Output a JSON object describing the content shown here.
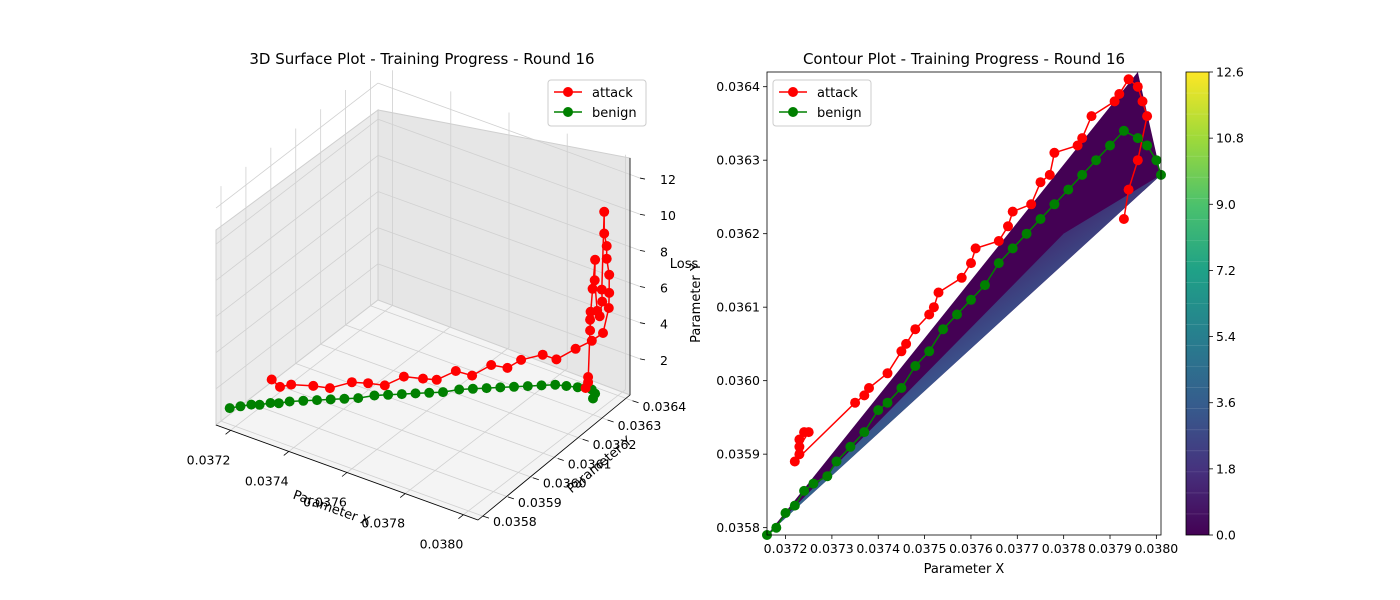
{
  "colors": {
    "attack": "#ff0000",
    "benign": "#008000",
    "pane": "#f2f2f2",
    "grid": "#d0d0d0",
    "fill_dark": "#440154",
    "fill_light": "#3b528b",
    "colormap": "viridis"
  },
  "chart_data": [
    {
      "type": "scatter3d",
      "title": "3D Surface Plot - Training Progress - Round 16",
      "xlabel": "Parameter X",
      "ylabel": "Parameter Y",
      "zlabel": "Loss",
      "x_ticks": [
        "0.0372",
        "0.0374",
        "0.0376",
        "0.0378",
        "0.0380"
      ],
      "y_ticks": [
        "0.0358",
        "0.0359",
        "0.0360",
        "0.0361",
        "0.0362",
        "0.0363",
        "0.0364"
      ],
      "z_ticks": [
        "2",
        "4",
        "6",
        "8",
        "10",
        "12"
      ],
      "xlim": [
        0.03715,
        0.03805
      ],
      "ylim": [
        0.03578,
        0.03643
      ],
      "zlim": [
        0,
        13
      ],
      "legend": {
        "placement": "upper right",
        "entries": [
          "attack",
          "benign"
        ]
      },
      "grid": true,
      "series": [
        {
          "name": "attack",
          "marker": "o",
          "x": [
            0.03723,
            0.03725,
            0.03728,
            0.03733,
            0.03737,
            0.03742,
            0.03745,
            0.03749,
            0.03753,
            0.03757,
            0.0376,
            0.03764,
            0.03767,
            0.03771,
            0.03774,
            0.03777,
            0.03781,
            0.03784,
            0.03788,
            0.03791,
            0.03794,
            0.03796,
            0.03797,
            0.03797,
            0.03797,
            0.03797,
            0.03797,
            0.03797,
            0.03797,
            0.03798,
            0.03798,
            0.03798,
            0.03798,
            0.03799,
            0.03799,
            0.03799,
            0.03799,
            0.038,
            0.038,
            0.038,
            0.038
          ],
          "y": [
            0.03591,
            0.03592,
            0.03593,
            0.03596,
            0.03598,
            0.03601,
            0.03604,
            0.03606,
            0.03609,
            0.03612,
            0.03614,
            0.03617,
            0.0362,
            0.03623,
            0.03626,
            0.03628,
            0.03632,
            0.03634,
            0.03637,
            0.0364,
            0.03641,
            0.03641,
            0.0364,
            0.0364,
            0.03639,
            0.03639,
            0.03638,
            0.03638,
            0.03637,
            0.03636,
            0.03635,
            0.03634,
            0.03633,
            0.03632,
            0.03631,
            0.0363,
            0.0363,
            0.03629,
            0.03628,
            0.03628,
            0.03627
          ],
          "z": [
            1.6,
            1.2,
            1.4,
            1.3,
            1.2,
            1.5,
            1.3,
            1.2,
            1.6,
            1.4,
            1.3,
            1.7,
            1.3,
            1.8,
            1.5,
            1.9,
            2.0,
            1.7,
            2.2,
            2.5,
            3.0,
            4.5,
            5.5,
            6.5,
            7.5,
            8.2,
            9.0,
            10.2,
            6.0,
            5.5,
            4.8,
            5.2,
            7.0,
            8.3,
            6.8,
            5.2,
            4.6,
            5.8,
            2.0,
            2.3,
            1.8
          ]
        },
        {
          "name": "benign",
          "marker": "o",
          "x": [
            0.03718,
            0.0372,
            0.03722,
            0.03724,
            0.03726,
            0.03728,
            0.0373,
            0.03733,
            0.03736,
            0.03739,
            0.03742,
            0.03745,
            0.03748,
            0.03751,
            0.03754,
            0.03757,
            0.0376,
            0.03763,
            0.03766,
            0.03769,
            0.03772,
            0.03775,
            0.03778,
            0.03781,
            0.03784,
            0.03787,
            0.0379,
            0.03793,
            0.03795,
            0.03797,
            0.03799,
            0.038
          ],
          "y": [
            0.0358,
            0.03582,
            0.03584,
            0.03585,
            0.03587,
            0.03588,
            0.0359,
            0.03592,
            0.03594,
            0.03596,
            0.03598,
            0.036,
            0.03603,
            0.03605,
            0.03607,
            0.03609,
            0.03611,
            0.03613,
            0.03616,
            0.03618,
            0.0362,
            0.03622,
            0.03624,
            0.03626,
            0.03628,
            0.0363,
            0.03631,
            0.03632,
            0.03633,
            0.03633,
            0.03632,
            0.0363
          ],
          "z": [
            0.9,
            0.9,
            0.9,
            0.9,
            0.9,
            0.9,
            0.9,
            0.9,
            0.9,
            0.9,
            0.9,
            0.9,
            0.9,
            0.9,
            0.9,
            0.9,
            0.9,
            0.9,
            0.9,
            0.9,
            0.9,
            0.9,
            0.9,
            0.9,
            0.9,
            0.9,
            0.9,
            0.9,
            0.9,
            0.9,
            0.9,
            0.9
          ]
        }
      ]
    },
    {
      "type": "contour",
      "title": "Contour Plot - Training Progress - Round 16",
      "xlabel": "Parameter X",
      "ylabel": "Parameter Y",
      "x_ticks": [
        "0.0372",
        "0.0373",
        "0.0374",
        "0.0375",
        "0.0376",
        "0.0377",
        "0.0378",
        "0.0379",
        "0.0380"
      ],
      "y_ticks": [
        "0.0358",
        "0.0359",
        "0.0360",
        "0.0361",
        "0.0362",
        "0.0363",
        "0.0364"
      ],
      "xlim": [
        0.03716,
        0.03801
      ],
      "ylim": [
        0.03579,
        0.03642
      ],
      "colorbar": {
        "ticks": [
          "0.0",
          "1.8",
          "3.6",
          "5.4",
          "7.2",
          "9.0",
          "10.8",
          "12.6"
        ],
        "range": [
          0,
          12.6
        ],
        "levels": 22
      },
      "legend": {
        "placement": "upper left",
        "entries": [
          "attack",
          "benign"
        ]
      },
      "series": [
        {
          "name": "attack",
          "marker": "o",
          "x": [
            0.03723,
            0.03723,
            0.03724,
            0.03725,
            0.03723,
            0.03722,
            0.03735,
            0.03737,
            0.03738,
            0.03742,
            0.03745,
            0.03746,
            0.03748,
            0.03751,
            0.03752,
            0.03753,
            0.03758,
            0.0376,
            0.03761,
            0.03766,
            0.03768,
            0.03769,
            0.03773,
            0.03775,
            0.03777,
            0.03778,
            0.03783,
            0.03784,
            0.03786,
            0.03791,
            0.03792,
            0.03794,
            0.03796,
            0.03797,
            0.03798,
            0.03796,
            0.03794,
            0.03793
          ],
          "y": [
            0.0359,
            0.03592,
            0.03593,
            0.03593,
            0.03591,
            0.03589,
            0.03597,
            0.03598,
            0.03599,
            0.03601,
            0.03604,
            0.03605,
            0.03607,
            0.03609,
            0.0361,
            0.03612,
            0.03614,
            0.03616,
            0.03618,
            0.03619,
            0.03621,
            0.03623,
            0.03624,
            0.03627,
            0.03628,
            0.03631,
            0.03632,
            0.03633,
            0.03636,
            0.03638,
            0.03639,
            0.03641,
            0.0364,
            0.03638,
            0.03636,
            0.0363,
            0.03626,
            0.03622
          ]
        },
        {
          "name": "benign",
          "marker": "o",
          "x": [
            0.03716,
            0.03718,
            0.0372,
            0.03722,
            0.03724,
            0.03726,
            0.03729,
            0.03731,
            0.03734,
            0.03737,
            0.0374,
            0.03742,
            0.03745,
            0.03748,
            0.03751,
            0.03754,
            0.03757,
            0.0376,
            0.03763,
            0.03766,
            0.03769,
            0.03772,
            0.03775,
            0.03778,
            0.03781,
            0.03784,
            0.03787,
            0.0379,
            0.03793,
            0.03796,
            0.03798,
            0.038,
            0.03801
          ],
          "y": [
            0.03579,
            0.0358,
            0.03582,
            0.03583,
            0.03585,
            0.03586,
            0.03587,
            0.03589,
            0.03591,
            0.03593,
            0.03596,
            0.03597,
            0.03599,
            0.03602,
            0.03604,
            0.03607,
            0.03609,
            0.03611,
            0.03613,
            0.03616,
            0.03618,
            0.0362,
            0.03622,
            0.03624,
            0.03626,
            0.03628,
            0.0363,
            0.03632,
            0.03634,
            0.03633,
            0.03632,
            0.0363,
            0.03628
          ]
        }
      ]
    }
  ]
}
